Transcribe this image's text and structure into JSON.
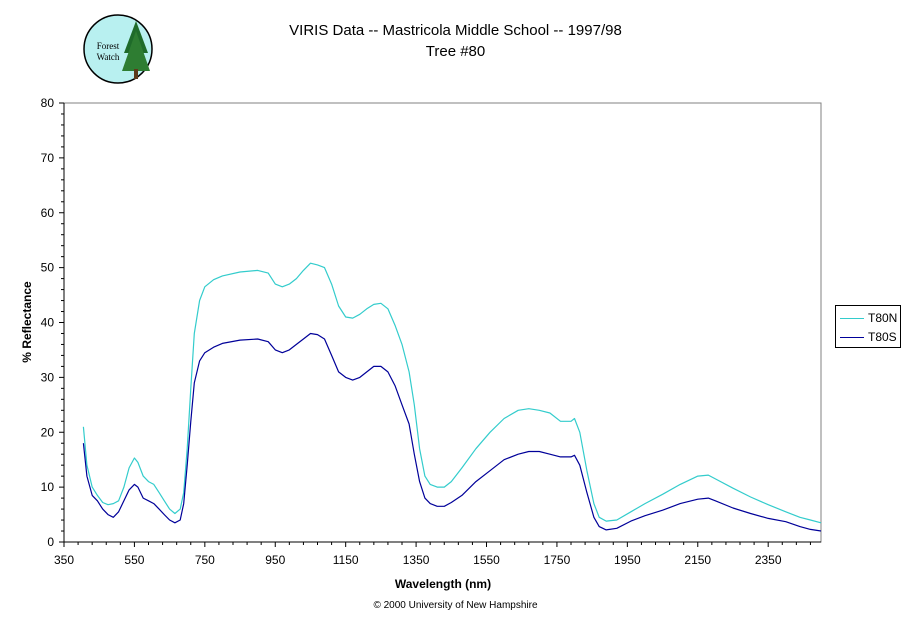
{
  "header": {
    "title_line1": "VIRIS Data -- Mastricola Middle School -- 1997/98",
    "title_line2": "Tree #80"
  },
  "logo": {
    "text_line1": "Forest",
    "text_line2": "Watch"
  },
  "footer": {
    "copyright": "© 2000 University of New Hampshire"
  },
  "colors": {
    "t80n": "#33CCCC",
    "t80s": "#000099",
    "axis": "#000000"
  },
  "chart_data": {
    "type": "line",
    "title": "VIRIS Data -- Mastricola Middle School -- 1997/98",
    "subtitle": "Tree #80",
    "xlabel": "Wavelength (nm)",
    "ylabel": "% Reflectance",
    "xlim": [
      350,
      2500
    ],
    "ylim": [
      0,
      80
    ],
    "xticks": [
      350,
      550,
      750,
      950,
      1150,
      1350,
      1550,
      1750,
      1950,
      2150,
      2350
    ],
    "yticks": [
      0,
      10,
      20,
      30,
      40,
      50,
      60,
      70,
      80
    ],
    "grid": false,
    "legend_position": "right",
    "series": [
      {
        "name": "T80N",
        "color": "#33CCCC",
        "points": [
          [
            405,
            21
          ],
          [
            415,
            14
          ],
          [
            430,
            10
          ],
          [
            445,
            8.5
          ],
          [
            460,
            7.2
          ],
          [
            475,
            6.8
          ],
          [
            490,
            7
          ],
          [
            505,
            7.5
          ],
          [
            520,
            10
          ],
          [
            535,
            13.5
          ],
          [
            550,
            15.3
          ],
          [
            560,
            14.5
          ],
          [
            575,
            12
          ],
          [
            590,
            11
          ],
          [
            605,
            10.5
          ],
          [
            620,
            9
          ],
          [
            635,
            7.5
          ],
          [
            650,
            6
          ],
          [
            665,
            5.2
          ],
          [
            680,
            6
          ],
          [
            690,
            9
          ],
          [
            700,
            17
          ],
          [
            710,
            28
          ],
          [
            720,
            38
          ],
          [
            735,
            44
          ],
          [
            750,
            46.5
          ],
          [
            775,
            47.8
          ],
          [
            800,
            48.5
          ],
          [
            850,
            49.2
          ],
          [
            900,
            49.5
          ],
          [
            930,
            49
          ],
          [
            950,
            47
          ],
          [
            970,
            46.5
          ],
          [
            990,
            47
          ],
          [
            1010,
            48
          ],
          [
            1030,
            49.5
          ],
          [
            1050,
            50.8
          ],
          [
            1070,
            50.5
          ],
          [
            1090,
            50
          ],
          [
            1110,
            47
          ],
          [
            1130,
            43
          ],
          [
            1150,
            41
          ],
          [
            1170,
            40.8
          ],
          [
            1190,
            41.5
          ],
          [
            1210,
            42.5
          ],
          [
            1230,
            43.3
          ],
          [
            1250,
            43.5
          ],
          [
            1270,
            42.5
          ],
          [
            1290,
            39.5
          ],
          [
            1310,
            36
          ],
          [
            1330,
            31
          ],
          [
            1345,
            25
          ],
          [
            1360,
            17
          ],
          [
            1375,
            12
          ],
          [
            1390,
            10.5
          ],
          [
            1410,
            10
          ],
          [
            1430,
            10
          ],
          [
            1450,
            11
          ],
          [
            1480,
            13.5
          ],
          [
            1520,
            17
          ],
          [
            1560,
            20
          ],
          [
            1600,
            22.5
          ],
          [
            1640,
            24
          ],
          [
            1670,
            24.3
          ],
          [
            1700,
            24
          ],
          [
            1730,
            23.5
          ],
          [
            1760,
            22
          ],
          [
            1790,
            22
          ],
          [
            1800,
            22.5
          ],
          [
            1815,
            20
          ],
          [
            1835,
            13
          ],
          [
            1855,
            7
          ],
          [
            1870,
            4.5
          ],
          [
            1890,
            3.8
          ],
          [
            1920,
            4
          ],
          [
            1960,
            5.5
          ],
          [
            2000,
            7
          ],
          [
            2050,
            8.7
          ],
          [
            2100,
            10.5
          ],
          [
            2150,
            12
          ],
          [
            2180,
            12.2
          ],
          [
            2200,
            11.5
          ],
          [
            2250,
            9.8
          ],
          [
            2300,
            8.2
          ],
          [
            2350,
            6.8
          ],
          [
            2400,
            5.5
          ],
          [
            2440,
            4.5
          ],
          [
            2470,
            4
          ],
          [
            2500,
            3.5
          ]
        ]
      },
      {
        "name": "T80S",
        "color": "#000099",
        "points": [
          [
            405,
            18
          ],
          [
            415,
            12
          ],
          [
            430,
            8.5
          ],
          [
            445,
            7.5
          ],
          [
            460,
            6
          ],
          [
            475,
            5
          ],
          [
            490,
            4.5
          ],
          [
            505,
            5.5
          ],
          [
            520,
            7.5
          ],
          [
            535,
            9.5
          ],
          [
            550,
            10.5
          ],
          [
            560,
            10
          ],
          [
            575,
            8
          ],
          [
            590,
            7.5
          ],
          [
            605,
            7
          ],
          [
            620,
            6
          ],
          [
            635,
            5
          ],
          [
            650,
            4
          ],
          [
            665,
            3.5
          ],
          [
            680,
            4
          ],
          [
            690,
            7
          ],
          [
            700,
            14
          ],
          [
            710,
            22
          ],
          [
            720,
            29
          ],
          [
            735,
            33
          ],
          [
            750,
            34.5
          ],
          [
            775,
            35.5
          ],
          [
            800,
            36.2
          ],
          [
            850,
            36.8
          ],
          [
            900,
            37
          ],
          [
            930,
            36.5
          ],
          [
            950,
            35
          ],
          [
            970,
            34.5
          ],
          [
            990,
            35
          ],
          [
            1010,
            36
          ],
          [
            1030,
            37
          ],
          [
            1050,
            38
          ],
          [
            1070,
            37.8
          ],
          [
            1090,
            37
          ],
          [
            1110,
            34
          ],
          [
            1130,
            31
          ],
          [
            1150,
            30
          ],
          [
            1170,
            29.5
          ],
          [
            1190,
            30
          ],
          [
            1210,
            31
          ],
          [
            1230,
            32
          ],
          [
            1250,
            32
          ],
          [
            1270,
            31
          ],
          [
            1290,
            28.5
          ],
          [
            1310,
            25
          ],
          [
            1330,
            21.5
          ],
          [
            1345,
            16
          ],
          [
            1360,
            11
          ],
          [
            1375,
            8
          ],
          [
            1390,
            7
          ],
          [
            1410,
            6.5
          ],
          [
            1430,
            6.5
          ],
          [
            1450,
            7.2
          ],
          [
            1480,
            8.5
          ],
          [
            1520,
            11
          ],
          [
            1560,
            13
          ],
          [
            1600,
            15
          ],
          [
            1640,
            16
          ],
          [
            1670,
            16.5
          ],
          [
            1700,
            16.5
          ],
          [
            1730,
            16
          ],
          [
            1760,
            15.5
          ],
          [
            1790,
            15.5
          ],
          [
            1800,
            15.8
          ],
          [
            1815,
            14
          ],
          [
            1835,
            9
          ],
          [
            1855,
            4.5
          ],
          [
            1870,
            2.8
          ],
          [
            1890,
            2.2
          ],
          [
            1920,
            2.5
          ],
          [
            1960,
            3.8
          ],
          [
            2000,
            4.8
          ],
          [
            2050,
            5.8
          ],
          [
            2100,
            7
          ],
          [
            2150,
            7.8
          ],
          [
            2180,
            8
          ],
          [
            2200,
            7.5
          ],
          [
            2250,
            6.2
          ],
          [
            2300,
            5.2
          ],
          [
            2350,
            4.3
          ],
          [
            2400,
            3.7
          ],
          [
            2440,
            2.8
          ],
          [
            2470,
            2.3
          ],
          [
            2500,
            2
          ]
        ]
      }
    ]
  }
}
